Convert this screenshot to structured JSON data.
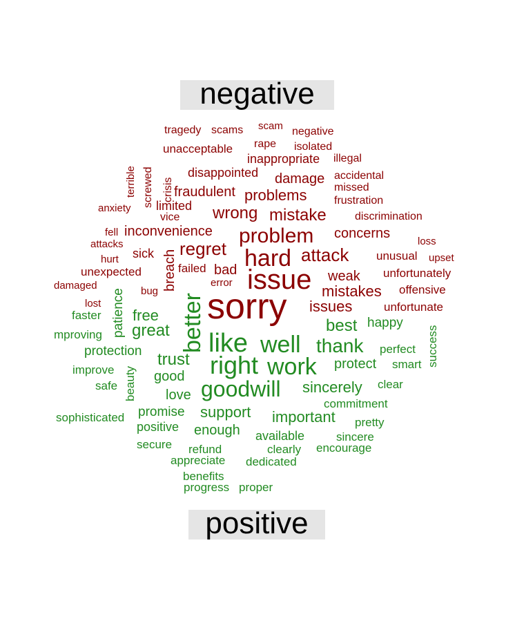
{
  "chart_data": {
    "type": "comparison-wordcloud",
    "groups": [
      {
        "name": "negative",
        "color": "#8b0000"
      },
      {
        "name": "positive",
        "color": "#228b22"
      }
    ],
    "labels": {
      "negative": "negative",
      "positive": "positive"
    },
    "words": [
      {
        "text": "sorry",
        "group": "negative",
        "weight": 52
      },
      {
        "text": "issue",
        "group": "negative",
        "weight": 40
      },
      {
        "text": "hard",
        "group": "negative",
        "weight": 34
      },
      {
        "text": "problem",
        "group": "negative",
        "weight": 30
      },
      {
        "text": "attack",
        "group": "negative",
        "weight": 26
      },
      {
        "text": "regret",
        "group": "negative",
        "weight": 26
      },
      {
        "text": "mistake",
        "group": "negative",
        "weight": 24
      },
      {
        "text": "wrong",
        "group": "negative",
        "weight": 24
      },
      {
        "text": "problems",
        "group": "negative",
        "weight": 22
      },
      {
        "text": "mistakes",
        "group": "negative",
        "weight": 22
      },
      {
        "text": "issues",
        "group": "negative",
        "weight": 22
      },
      {
        "text": "damage",
        "group": "negative",
        "weight": 20
      },
      {
        "text": "weak",
        "group": "negative",
        "weight": 20
      },
      {
        "text": "concerns",
        "group": "negative",
        "weight": 20
      },
      {
        "text": "inconvenience",
        "group": "negative",
        "weight": 20
      },
      {
        "text": "breach",
        "group": "negative",
        "weight": 20
      },
      {
        "text": "fraudulent",
        "group": "negative",
        "weight": 20
      },
      {
        "text": "bad",
        "group": "negative",
        "weight": 20
      },
      {
        "text": "sick",
        "group": "negative",
        "weight": 18
      },
      {
        "text": "limited",
        "group": "negative",
        "weight": 18
      },
      {
        "text": "disappointed",
        "group": "negative",
        "weight": 18
      },
      {
        "text": "inappropriate",
        "group": "negative",
        "weight": 18
      },
      {
        "text": "unacceptable",
        "group": "negative",
        "weight": 17
      },
      {
        "text": "unexpected",
        "group": "negative",
        "weight": 17
      },
      {
        "text": "unfortunately",
        "group": "negative",
        "weight": 17
      },
      {
        "text": "unfortunate",
        "group": "negative",
        "weight": 17
      },
      {
        "text": "unusual",
        "group": "negative",
        "weight": 17
      },
      {
        "text": "failed",
        "group": "negative",
        "weight": 17
      },
      {
        "text": "offensive",
        "group": "negative",
        "weight": 17
      },
      {
        "text": "discrimination",
        "group": "negative",
        "weight": 16
      },
      {
        "text": "frustration",
        "group": "negative",
        "weight": 16
      },
      {
        "text": "tragedy",
        "group": "negative",
        "weight": 16
      },
      {
        "text": "scams",
        "group": "negative",
        "weight": 16
      },
      {
        "text": "rape",
        "group": "negative",
        "weight": 16
      },
      {
        "text": "negative",
        "group": "negative",
        "weight": 16
      },
      {
        "text": "isolated",
        "group": "negative",
        "weight": 16
      },
      {
        "text": "vice",
        "group": "negative",
        "weight": 16
      },
      {
        "text": "accidental",
        "group": "negative",
        "weight": 16
      },
      {
        "text": "missed",
        "group": "negative",
        "weight": 16
      },
      {
        "text": "illegal",
        "group": "negative",
        "weight": 16
      },
      {
        "text": "crisis",
        "group": "negative",
        "weight": 16
      },
      {
        "text": "screwed",
        "group": "negative",
        "weight": 16
      },
      {
        "text": "scam",
        "group": "negative",
        "weight": 15
      },
      {
        "text": "terrible",
        "group": "negative",
        "weight": 15
      },
      {
        "text": "anxiety",
        "group": "negative",
        "weight": 15
      },
      {
        "text": "fell",
        "group": "negative",
        "weight": 15
      },
      {
        "text": "attacks",
        "group": "negative",
        "weight": 15
      },
      {
        "text": "hurt",
        "group": "negative",
        "weight": 15
      },
      {
        "text": "damaged",
        "group": "negative",
        "weight": 15
      },
      {
        "text": "bug",
        "group": "negative",
        "weight": 15
      },
      {
        "text": "error",
        "group": "negative",
        "weight": 15
      },
      {
        "text": "lost",
        "group": "negative",
        "weight": 15
      },
      {
        "text": "loss",
        "group": "negative",
        "weight": 15
      },
      {
        "text": "upset",
        "group": "negative",
        "weight": 15
      },
      {
        "text": "like",
        "group": "positive",
        "weight": 38
      },
      {
        "text": "right",
        "group": "positive",
        "weight": 36
      },
      {
        "text": "better",
        "group": "positive",
        "weight": 34
      },
      {
        "text": "well",
        "group": "positive",
        "weight": 34
      },
      {
        "text": "work",
        "group": "positive",
        "weight": 34
      },
      {
        "text": "goodwill",
        "group": "positive",
        "weight": 32
      },
      {
        "text": "thank",
        "group": "positive",
        "weight": 28
      },
      {
        "text": "great",
        "group": "positive",
        "weight": 24
      },
      {
        "text": "trust",
        "group": "positive",
        "weight": 24
      },
      {
        "text": "best",
        "group": "positive",
        "weight": 24
      },
      {
        "text": "sincerely",
        "group": "positive",
        "weight": 22
      },
      {
        "text": "support",
        "group": "positive",
        "weight": 22
      },
      {
        "text": "important",
        "group": "positive",
        "weight": 22
      },
      {
        "text": "free",
        "group": "positive",
        "weight": 22
      },
      {
        "text": "protect",
        "group": "positive",
        "weight": 20
      },
      {
        "text": "good",
        "group": "positive",
        "weight": 20
      },
      {
        "text": "love",
        "group": "positive",
        "weight": 20
      },
      {
        "text": "enough",
        "group": "positive",
        "weight": 20
      },
      {
        "text": "protection",
        "group": "positive",
        "weight": 19
      },
      {
        "text": "happy",
        "group": "positive",
        "weight": 19
      },
      {
        "text": "patience",
        "group": "positive",
        "weight": 19
      },
      {
        "text": "promise",
        "group": "positive",
        "weight": 19
      },
      {
        "text": "positive",
        "group": "positive",
        "weight": 18
      },
      {
        "text": "available",
        "group": "positive",
        "weight": 18
      },
      {
        "text": "perfect",
        "group": "positive",
        "weight": 17
      },
      {
        "text": "smart",
        "group": "positive",
        "weight": 17
      },
      {
        "text": "clear",
        "group": "positive",
        "weight": 17
      },
      {
        "text": "success",
        "group": "positive",
        "weight": 17
      },
      {
        "text": "improve",
        "group": "positive",
        "weight": 17
      },
      {
        "text": "safe",
        "group": "positive",
        "weight": 17
      },
      {
        "text": "beauty",
        "group": "positive",
        "weight": 17
      },
      {
        "text": "commitment",
        "group": "positive",
        "weight": 17
      },
      {
        "text": "pretty",
        "group": "positive",
        "weight": 17
      },
      {
        "text": "sincere",
        "group": "positive",
        "weight": 17
      },
      {
        "text": "encourage",
        "group": "positive",
        "weight": 17
      },
      {
        "text": "clearly",
        "group": "positive",
        "weight": 17
      },
      {
        "text": "refund",
        "group": "positive",
        "weight": 17
      },
      {
        "text": "appreciate",
        "group": "positive",
        "weight": 17
      },
      {
        "text": "dedicated",
        "group": "positive",
        "weight": 17
      },
      {
        "text": "secure",
        "group": "positive",
        "weight": 17
      },
      {
        "text": "sophisticated",
        "group": "positive",
        "weight": 17
      },
      {
        "text": "benefits",
        "group": "positive",
        "weight": 17
      },
      {
        "text": "progress",
        "group": "positive",
        "weight": 17
      },
      {
        "text": "proper",
        "group": "positive",
        "weight": 17
      },
      {
        "text": "faster",
        "group": "positive",
        "weight": 17
      },
      {
        "text": "mproving",
        "group": "positive",
        "weight": 17
      }
    ]
  }
}
